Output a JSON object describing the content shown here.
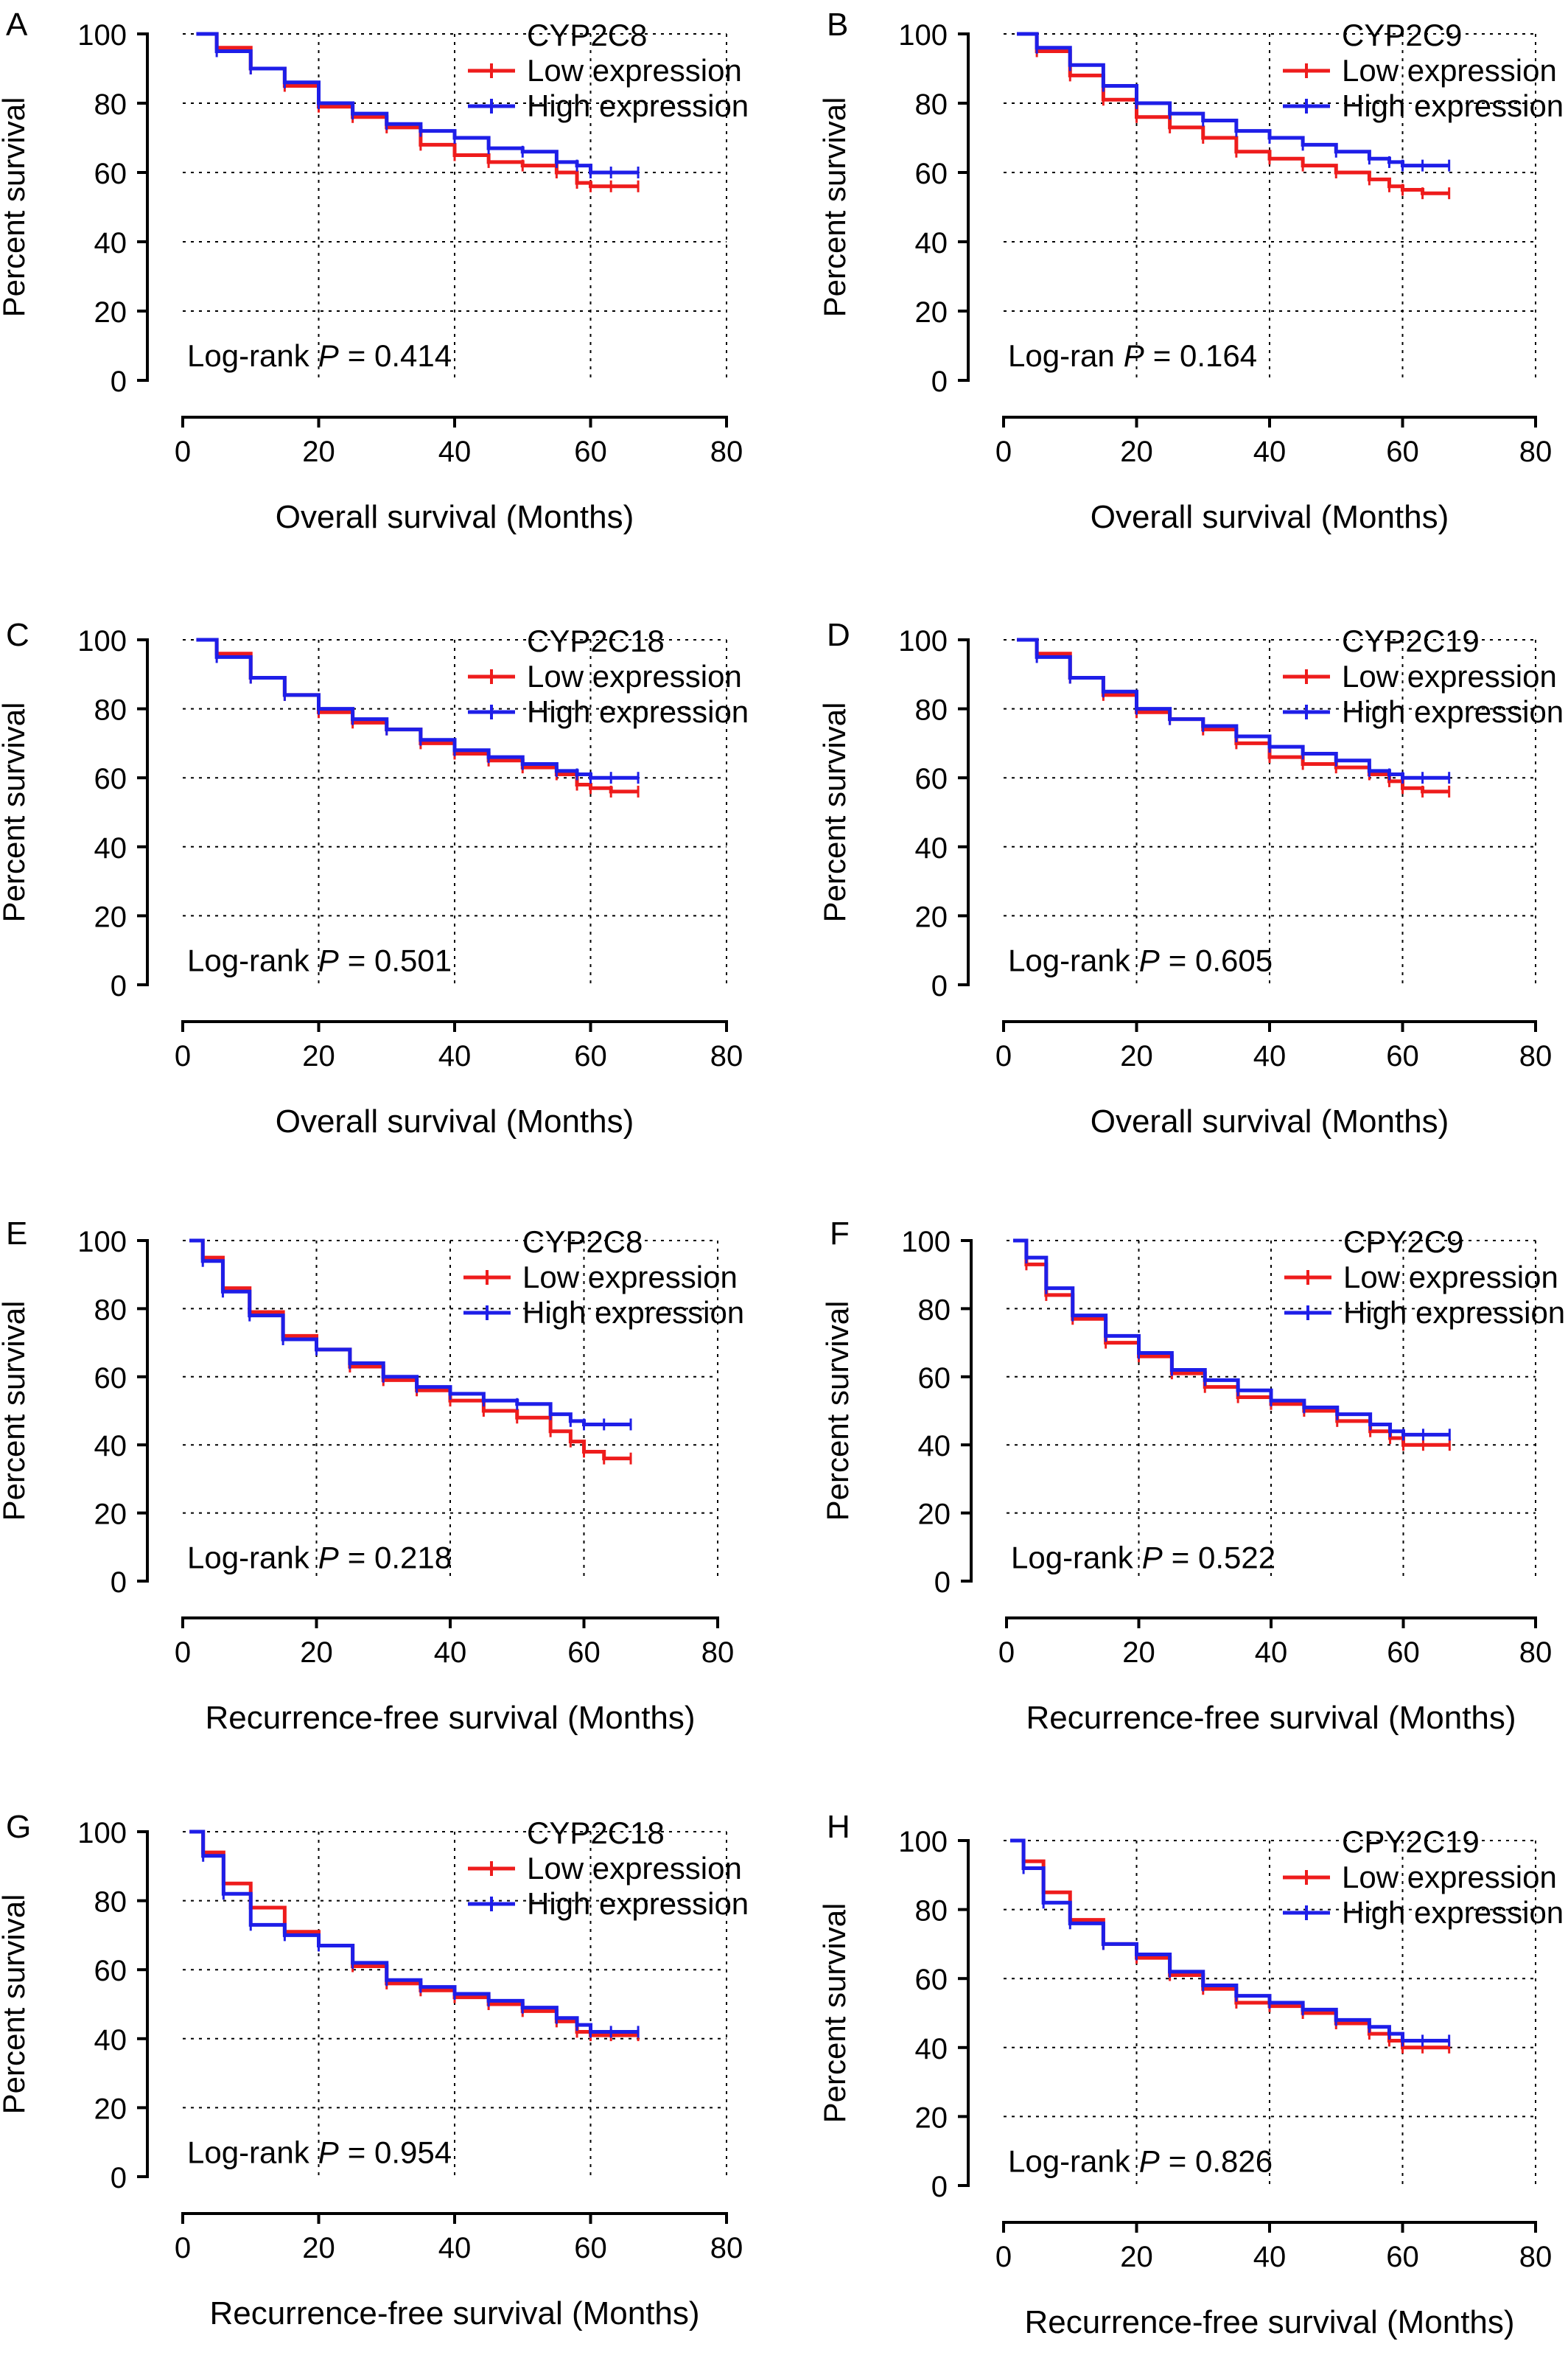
{
  "figure": {
    "panel_y_axis_label": "Percent survival",
    "log_rank_prefix": "Log-rank",
    "p_symbol": "P"
  },
  "chart_data": [
    {
      "panel": "A",
      "type": "line",
      "title": "CYP2C8",
      "xlabel": "Overall survival (Months)",
      "ylabel": "Percent survival",
      "xlim": [
        0,
        80
      ],
      "ylim": [
        0,
        100
      ],
      "xticks": [
        "0",
        "20",
        "40",
        "60",
        "80"
      ],
      "yticks": [
        "0",
        "20",
        "40",
        "60",
        "80",
        "100"
      ],
      "grid": true,
      "legend_position": "top-right",
      "annotation": {
        "prefix": "Log-rank",
        "symbol": "P",
        "value": "= 0.414"
      },
      "colors": {
        "low": "#ee1c1c",
        "high": "#1e1ee8"
      },
      "series": [
        {
          "name": "Low expression",
          "x": [
            2,
            5,
            10,
            15,
            20,
            25,
            30,
            35,
            40,
            45,
            50,
            55,
            58,
            60,
            63,
            67
          ],
          "y": [
            100,
            96,
            90,
            85,
            79,
            76,
            73,
            68,
            65,
            63,
            62,
            60,
            57,
            56,
            56,
            56
          ]
        },
        {
          "name": "High expression",
          "x": [
            2,
            5,
            10,
            15,
            20,
            25,
            30,
            35,
            40,
            45,
            50,
            55,
            58,
            60,
            63,
            67
          ],
          "y": [
            100,
            95,
            90,
            86,
            80,
            77,
            74,
            72,
            70,
            67,
            66,
            63,
            62,
            60,
            60,
            60
          ]
        }
      ]
    },
    {
      "panel": "B",
      "type": "line",
      "title": "CYP2C9",
      "xlabel": "Overall survival (Months)",
      "ylabel": "Percent survival",
      "xlim": [
        0,
        80
      ],
      "ylim": [
        0,
        100
      ],
      "xticks": [
        "0",
        "20",
        "40",
        "60",
        "80"
      ],
      "yticks": [
        "0",
        "20",
        "40",
        "60",
        "80",
        "100"
      ],
      "grid": true,
      "legend_position": "top-right",
      "annotation": {
        "prefix": "Log-ran",
        "symbol": "P",
        "value": "= 0.164"
      },
      "colors": {
        "low": "#ee1c1c",
        "high": "#1e1ee8"
      },
      "series": [
        {
          "name": "Low expression",
          "x": [
            2,
            5,
            10,
            15,
            20,
            25,
            30,
            35,
            40,
            45,
            50,
            55,
            58,
            60,
            63,
            67
          ],
          "y": [
            100,
            95,
            88,
            81,
            76,
            73,
            70,
            66,
            64,
            62,
            60,
            58,
            56,
            55,
            54,
            54
          ]
        },
        {
          "name": "High expression",
          "x": [
            2,
            5,
            10,
            15,
            20,
            25,
            30,
            35,
            40,
            45,
            50,
            55,
            58,
            60,
            63,
            67
          ],
          "y": [
            100,
            96,
            91,
            85,
            80,
            77,
            75,
            72,
            70,
            68,
            66,
            64,
            63,
            62,
            62,
            62
          ]
        }
      ]
    },
    {
      "panel": "C",
      "type": "line",
      "title": "CYP2C18",
      "xlabel": "Overall survival (Months)",
      "ylabel": "Percent survival",
      "xlim": [
        0,
        80
      ],
      "ylim": [
        0,
        100
      ],
      "xticks": [
        "0",
        "20",
        "40",
        "60",
        "80"
      ],
      "yticks": [
        "0",
        "20",
        "40",
        "60",
        "80",
        "100"
      ],
      "grid": true,
      "legend_position": "top-right",
      "annotation": {
        "prefix": "Log-rank",
        "symbol": "P",
        "value": "= 0.501"
      },
      "colors": {
        "low": "#ee1c1c",
        "high": "#1e1ee8"
      },
      "series": [
        {
          "name": "Low expression",
          "x": [
            2,
            5,
            10,
            15,
            20,
            25,
            30,
            35,
            40,
            45,
            50,
            55,
            58,
            60,
            63,
            67
          ],
          "y": [
            100,
            96,
            89,
            84,
            79,
            76,
            74,
            70,
            67,
            65,
            63,
            61,
            58,
            57,
            56,
            56
          ]
        },
        {
          "name": "High expression",
          "x": [
            2,
            5,
            10,
            15,
            20,
            25,
            30,
            35,
            40,
            45,
            50,
            55,
            58,
            60,
            63,
            67
          ],
          "y": [
            100,
            95,
            89,
            84,
            80,
            77,
            74,
            71,
            68,
            66,
            64,
            62,
            61,
            60,
            60,
            60
          ]
        }
      ]
    },
    {
      "panel": "D",
      "type": "line",
      "title": "CYP2C19",
      "xlabel": "Overall survival (Months)",
      "ylabel": "Percent survival",
      "xlim": [
        0,
        80
      ],
      "ylim": [
        0,
        100
      ],
      "xticks": [
        "0",
        "20",
        "40",
        "60",
        "80"
      ],
      "yticks": [
        "0",
        "20",
        "40",
        "60",
        "80",
        "100"
      ],
      "grid": true,
      "legend_position": "top-right",
      "annotation": {
        "prefix": "Log-rank",
        "symbol": "P",
        "value": "= 0.605"
      },
      "colors": {
        "low": "#ee1c1c",
        "high": "#1e1ee8"
      },
      "series": [
        {
          "name": "Low expression",
          "x": [
            2,
            5,
            10,
            15,
            20,
            25,
            30,
            35,
            40,
            45,
            50,
            55,
            58,
            60,
            63,
            67
          ],
          "y": [
            100,
            96,
            89,
            84,
            79,
            77,
            74,
            70,
            66,
            64,
            63,
            61,
            59,
            57,
            56,
            56
          ]
        },
        {
          "name": "High expression",
          "x": [
            2,
            5,
            10,
            15,
            20,
            25,
            30,
            35,
            40,
            45,
            50,
            55,
            58,
            60,
            63,
            67
          ],
          "y": [
            100,
            95,
            89,
            85,
            80,
            77,
            75,
            72,
            69,
            67,
            65,
            62,
            61,
            60,
            60,
            60
          ]
        }
      ]
    },
    {
      "panel": "E",
      "type": "line",
      "title": "CYP2C8",
      "xlabel": "Recurrence-free survival (Months)",
      "ylabel": "Percent survival",
      "xlim": [
        0,
        80
      ],
      "ylim": [
        0,
        100
      ],
      "xticks": [
        "0",
        "20",
        "40",
        "60",
        "80"
      ],
      "yticks": [
        "0",
        "20",
        "40",
        "60",
        "80",
        "100"
      ],
      "grid": true,
      "legend_position": "top-right",
      "annotation": {
        "prefix": "Log-rank",
        "symbol": "P",
        "value": "= 0.218"
      },
      "colors": {
        "low": "#ee1c1c",
        "high": "#1e1ee8"
      },
      "series": [
        {
          "name": "Low expression",
          "x": [
            1,
            3,
            6,
            10,
            15,
            20,
            25,
            30,
            35,
            40,
            45,
            50,
            55,
            58,
            60,
            63,
            67
          ],
          "y": [
            100,
            95,
            86,
            79,
            72,
            68,
            63,
            59,
            56,
            53,
            50,
            48,
            44,
            41,
            38,
            36,
            36
          ]
        },
        {
          "name": "High expression",
          "x": [
            1,
            3,
            6,
            10,
            15,
            20,
            25,
            30,
            35,
            40,
            45,
            50,
            55,
            58,
            60,
            63,
            67
          ],
          "y": [
            100,
            94,
            85,
            78,
            71,
            68,
            64,
            60,
            57,
            55,
            53,
            52,
            49,
            47,
            46,
            46,
            46
          ]
        }
      ]
    },
    {
      "panel": "F",
      "type": "line",
      "title": "CPY2C9",
      "xlabel": "Recurrence-free survival (Months)",
      "ylabel": "Percent survival",
      "xlim": [
        0,
        80
      ],
      "ylim": [
        0,
        100
      ],
      "xticks": [
        "0",
        "20",
        "40",
        "60",
        "80"
      ],
      "yticks": [
        "0",
        "20",
        "40",
        "60",
        "80",
        "100"
      ],
      "grid": true,
      "legend_position": "top-right",
      "annotation": {
        "prefix": "Log-rank",
        "symbol": "P",
        "value": "= 0.522"
      },
      "colors": {
        "low": "#ee1c1c",
        "high": "#1e1ee8"
      },
      "series": [
        {
          "name": "Low expression",
          "x": [
            1,
            3,
            6,
            10,
            15,
            20,
            25,
            30,
            35,
            40,
            45,
            50,
            55,
            58,
            60,
            63,
            67
          ],
          "y": [
            100,
            93,
            84,
            77,
            70,
            66,
            61,
            57,
            54,
            52,
            50,
            47,
            44,
            42,
            40,
            40,
            40
          ]
        },
        {
          "name": "High expression",
          "x": [
            1,
            3,
            6,
            10,
            15,
            20,
            25,
            30,
            35,
            40,
            45,
            50,
            55,
            58,
            60,
            63,
            67
          ],
          "y": [
            100,
            95,
            86,
            78,
            72,
            67,
            62,
            59,
            56,
            53,
            51,
            49,
            46,
            44,
            43,
            43,
            43
          ]
        }
      ]
    },
    {
      "panel": "G",
      "type": "line",
      "title": "CYP2C18",
      "xlabel": "Recurrence-free survival (Months)",
      "ylabel": "Percent survival",
      "xlim": [
        0,
        80
      ],
      "ylim": [
        0,
        100
      ],
      "xticks": [
        "0",
        "20",
        "40",
        "60",
        "80"
      ],
      "yticks": [
        "0",
        "20",
        "40",
        "60",
        "80",
        "100"
      ],
      "grid": true,
      "legend_position": "top-right",
      "annotation": {
        "prefix": "Log-rank",
        "symbol": "P",
        "value": "= 0.954"
      },
      "colors": {
        "low": "#ee1c1c",
        "high": "#1e1ee8"
      },
      "series": [
        {
          "name": "Low expression",
          "x": [
            1,
            3,
            6,
            10,
            15,
            20,
            25,
            30,
            35,
            40,
            45,
            50,
            55,
            58,
            60,
            63,
            67
          ],
          "y": [
            100,
            94,
            85,
            78,
            71,
            67,
            61,
            56,
            54,
            52,
            50,
            48,
            45,
            42,
            41,
            41,
            41
          ]
        },
        {
          "name": "High expression",
          "x": [
            1,
            3,
            6,
            10,
            15,
            20,
            25,
            30,
            35,
            40,
            45,
            50,
            55,
            58,
            60,
            63,
            67
          ],
          "y": [
            100,
            93,
            82,
            73,
            70,
            67,
            62,
            57,
            55,
            53,
            51,
            49,
            46,
            44,
            42,
            42,
            42
          ]
        }
      ]
    },
    {
      "panel": "H",
      "type": "line",
      "title": "CPY2C19",
      "xlabel": "Recurrence-free survival (Months)",
      "ylabel": "Percent survival",
      "xlim": [
        0,
        80
      ],
      "ylim": [
        0,
        100
      ],
      "xticks": [
        "0",
        "20",
        "40",
        "60",
        "80"
      ],
      "yticks": [
        "0",
        "20",
        "40",
        "60",
        "80",
        "100"
      ],
      "grid": true,
      "legend_position": "top-right",
      "annotation": {
        "prefix": "Log-rank",
        "symbol": "P",
        "value": "= 0.826"
      },
      "colors": {
        "low": "#ee1c1c",
        "high": "#1e1ee8"
      },
      "series": [
        {
          "name": "Low expression",
          "x": [
            1,
            3,
            6,
            10,
            15,
            20,
            25,
            30,
            35,
            40,
            45,
            50,
            55,
            58,
            60,
            63,
            67
          ],
          "y": [
            100,
            94,
            85,
            77,
            70,
            66,
            61,
            57,
            53,
            52,
            50,
            47,
            44,
            42,
            40,
            40,
            40
          ]
        },
        {
          "name": "High expression",
          "x": [
            1,
            3,
            6,
            10,
            15,
            20,
            25,
            30,
            35,
            40,
            45,
            50,
            55,
            58,
            60,
            63,
            67
          ],
          "y": [
            100,
            92,
            82,
            76,
            70,
            67,
            62,
            58,
            55,
            53,
            51,
            48,
            46,
            44,
            42,
            42,
            42
          ]
        }
      ]
    }
  ]
}
